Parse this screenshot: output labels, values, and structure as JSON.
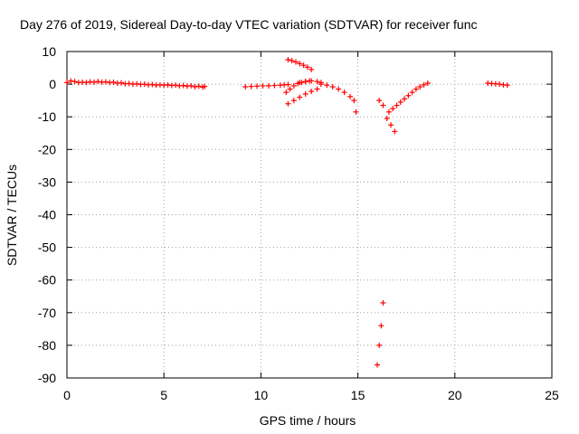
{
  "chart_data": {
    "type": "scatter",
    "title": "Day 276 of 2019, Sidereal Day-to-day VTEC variation (SDTVAR) for receiver func",
    "xlabel": "GPS time / hours",
    "ylabel": "SDTVAR / TECUs",
    "xlim": [
      0,
      25
    ],
    "ylim": [
      -90,
      10
    ],
    "x_ticks": [
      0,
      5,
      10,
      15,
      20,
      25
    ],
    "y_ticks": [
      10,
      0,
      -10,
      -20,
      -30,
      -40,
      -50,
      -60,
      -70,
      -80,
      -90
    ],
    "grid": true,
    "marker": "+",
    "color": "#ff0000",
    "series": [
      {
        "x": [
          0.0,
          0.2,
          0.4,
          0.6,
          0.8,
          1.0,
          1.2,
          1.4,
          1.6,
          1.8,
          2.0,
          2.2,
          2.4,
          2.6,
          2.8,
          3.0,
          3.2,
          3.4,
          3.6,
          3.8,
          4.0,
          4.2,
          4.4,
          4.6,
          4.8,
          5.0,
          5.2,
          5.4,
          5.6,
          5.8,
          6.0,
          6.2,
          6.4,
          6.6,
          6.8,
          7.0,
          7.1
        ],
        "y": [
          0.5,
          1.0,
          0.8,
          0.5,
          0.6,
          0.5,
          0.7,
          0.6,
          0.8,
          0.6,
          0.7,
          0.5,
          0.6,
          0.3,
          0.4,
          0.1,
          0.2,
          0.0,
          0.1,
          -0.1,
          0.0,
          -0.2,
          -0.1,
          -0.3,
          -0.2,
          -0.3,
          -0.2,
          -0.4,
          -0.3,
          -0.5,
          -0.4,
          -0.6,
          -0.5,
          -0.8,
          -0.6,
          -0.9,
          -0.7
        ]
      },
      {
        "x": [
          9.2,
          9.5,
          9.8,
          10.1,
          10.4,
          10.7,
          11.0,
          11.2,
          11.4
        ],
        "y": [
          -0.8,
          -0.7,
          -0.6,
          -0.5,
          -0.5,
          -0.4,
          -0.3,
          -0.2,
          -0.1
        ]
      },
      {
        "x": [
          11.3,
          11.5,
          11.7,
          11.9,
          12.1,
          12.3,
          12.5
        ],
        "y": [
          -2.5,
          -1.5,
          -0.5,
          0.2,
          0.5,
          0.8,
          1.0
        ]
      },
      {
        "x": [
          11.4,
          11.6,
          11.8,
          12.0,
          12.2,
          12.4,
          12.6
        ],
        "y": [
          7.5,
          7.2,
          6.8,
          6.3,
          5.8,
          5.2,
          4.5
        ]
      },
      {
        "x": [
          11.4,
          11.7,
          12.0,
          12.3,
          12.6,
          12.9
        ],
        "y": [
          -6.0,
          -5.0,
          -4.0,
          -3.0,
          -2.2,
          -1.5
        ]
      },
      {
        "x": [
          12.0,
          12.3,
          12.6,
          12.9,
          13.1
        ],
        "y": [
          0.5,
          0.8,
          1.0,
          0.8,
          0.5
        ]
      },
      {
        "x": [
          13.1,
          13.4,
          13.7,
          14.0,
          14.3,
          14.6,
          14.8,
          14.9
        ],
        "y": [
          0.0,
          -0.3,
          -0.8,
          -1.5,
          -2.5,
          -3.8,
          -5.0,
          -8.5
        ]
      },
      {
        "x": [
          16.0,
          16.1,
          16.2,
          16.3
        ],
        "y": [
          -86.0,
          -80.0,
          -74.0,
          -67.0
        ]
      },
      {
        "x": [
          16.1,
          16.3,
          16.5,
          16.7,
          16.9
        ],
        "y": [
          -5.0,
          -6.5,
          -10.5,
          -12.5,
          -14.5
        ]
      },
      {
        "x": [
          16.6,
          16.8,
          17.0,
          17.2,
          17.4,
          17.6,
          17.8,
          18.0,
          18.2,
          18.4,
          18.6
        ],
        "y": [
          -8.5,
          -7.5,
          -6.5,
          -5.5,
          -4.5,
          -3.5,
          -2.5,
          -1.5,
          -0.8,
          -0.2,
          0.3
        ]
      },
      {
        "x": [
          21.7,
          21.9,
          22.1,
          22.3,
          22.5,
          22.7
        ],
        "y": [
          0.3,
          0.2,
          0.1,
          0.0,
          -0.2,
          -0.3
        ]
      }
    ]
  }
}
